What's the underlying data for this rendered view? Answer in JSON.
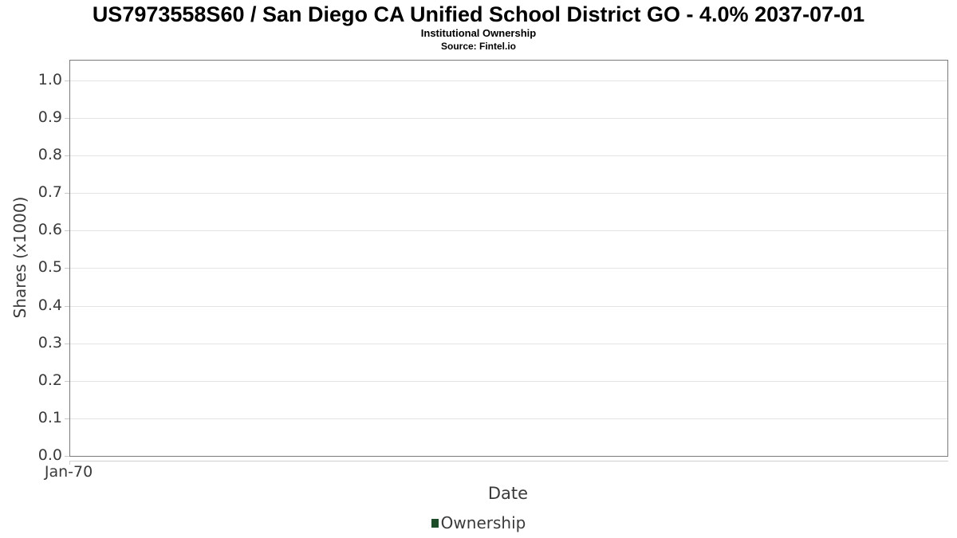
{
  "chart_data": {
    "type": "line",
    "title": "US7973558S60 / San Diego CA Unified School District GO - 4.0% 2037-07-01",
    "subtitle": "Institutional Ownership",
    "source": "Source: Fintel.io",
    "xlabel": "Date",
    "ylabel": "Shares (x1000)",
    "xtick_labels": [
      "Jan-70"
    ],
    "yticks": [
      0.0,
      0.1,
      0.2,
      0.3,
      0.4,
      0.5,
      0.6,
      0.7,
      0.8,
      0.9,
      1.0
    ],
    "ytick_decimals": 1,
    "ylim": [
      0.0,
      1.053
    ],
    "grid": true,
    "legend_position": "bottom-center",
    "legend": [
      {
        "label": "Ownership",
        "color": "#1d4d28"
      }
    ],
    "series": [
      {
        "name": "Ownership",
        "points": []
      }
    ],
    "colors": {
      "gridline": "#e4e4e4",
      "plot_border": "#7a7a7a",
      "x_axis_line": "#cfcfcf",
      "tick_mark": "#c9c9c9",
      "label_text": "#3a3a3a",
      "title_text": "#000000"
    }
  }
}
